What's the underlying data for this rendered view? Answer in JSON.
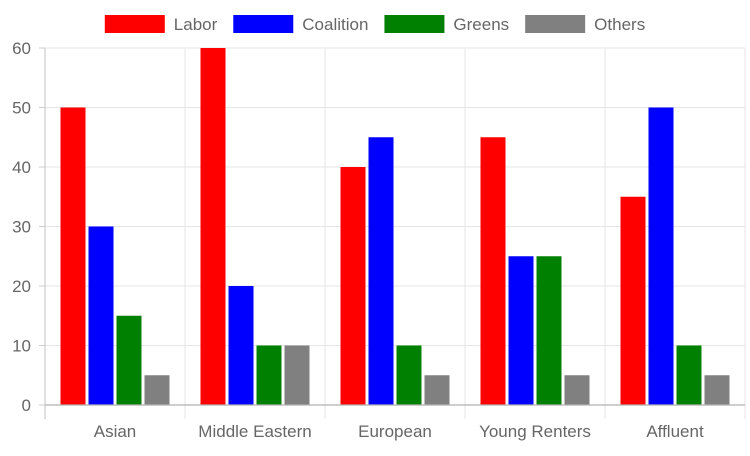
{
  "chart_data": {
    "type": "bar",
    "title": "",
    "xlabel": "",
    "ylabel": "",
    "categories": [
      "Asian",
      "Middle Eastern",
      "European",
      "Young Renters",
      "Affluent"
    ],
    "series": [
      {
        "name": "Labor",
        "color": "#ff0000",
        "values": [
          50,
          60,
          40,
          45,
          35
        ]
      },
      {
        "name": "Coalition",
        "color": "#0000ff",
        "values": [
          30,
          20,
          45,
          25,
          50
        ]
      },
      {
        "name": "Greens",
        "color": "#008000",
        "values": [
          15,
          10,
          10,
          25,
          10
        ]
      },
      {
        "name": "Others",
        "color": "#808080",
        "values": [
          5,
          10,
          5,
          5,
          5
        ]
      }
    ],
    "ylim": [
      0,
      60
    ],
    "yticks": [
      0,
      10,
      20,
      30,
      40,
      50,
      60
    ],
    "grid": true,
    "legend_position": "top"
  }
}
